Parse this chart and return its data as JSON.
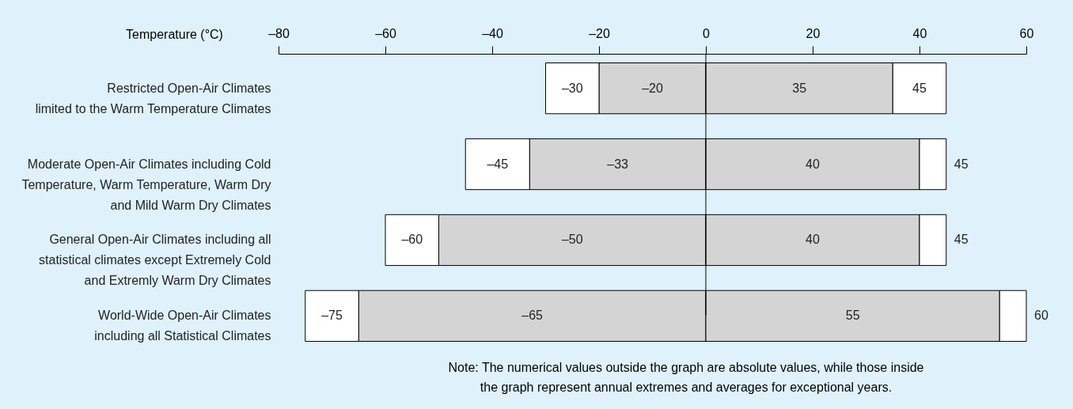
{
  "chart_data": {
    "type": "bar",
    "orientation": "horizontal",
    "stacked": true,
    "xlabel": "Temperature (°C)",
    "categories": [
      "Restricted Open-Air Climates\n limited to the Warm Temperature Climates",
      "Moderate Open-Air Climates including Cold\n Temperature, Warm Temperature, Warm Dry\n and Mild Warm Dry Climates",
      "General Open-Air Climates including all\n statistical climates except Extremely Cold\n and Extremly Warm Dry Climates",
      "World-Wide Open-Air Climates\n including all Statistical  Climates"
    ],
    "xlim": [
      -80,
      60
    ],
    "xticks": [
      {
        "value": -80,
        "label": "–80"
      },
      {
        "value": -60,
        "label": "–60"
      },
      {
        "value": -40,
        "label": "–40"
      },
      {
        "value": -20,
        "label": "–20"
      },
      0,
      20,
      40,
      60
    ],
    "grid": false,
    "legend": false,
    "series": [
      {
        "color": "#d4d4d4",
        "values": [
          -20,
          -33,
          -50,
          -65
        ],
        "value_labels": [
          "–20",
          "–33",
          "–50",
          "–65"
        ]
      },
      {
        "color": "#ffffff",
        "values": [
          -10,
          -12,
          -10,
          -10
        ]
      },
      {
        "color": "#d4d4d4",
        "values": [
          35,
          40,
          40,
          55
        ],
        "value_labels": [
          "35",
          "40",
          "40",
          "55"
        ]
      },
      {
        "color": "#ffffff",
        "values": [
          10,
          5,
          5,
          5
        ]
      }
    ],
    "ref_lines": [
      {
        "axis": "x",
        "value": 0
      }
    ],
    "annotations": [
      {
        "text": "–30",
        "x": -30,
        "y": "Restricted Open-Air Climates\n limited to the Warm Temperature Climates"
      },
      {
        "text": "–45",
        "x": -45,
        "y": "Moderate Open-Air Climates including Cold\n Temperature, Warm Temperature, Warm Dry\n and Mild Warm Dry Climates"
      },
      {
        "text": "–60",
        "x": -60,
        "y": "General Open-Air Climates including all\n statistical climates except Extremely Cold\n and Extremly Warm Dry Climates"
      },
      {
        "text": "–75",
        "x": -75,
        "y": "World-Wide Open-Air Climates\n including all Statistical  Climates"
      },
      {
        "text": "45",
        "x": 45,
        "y": "Restricted Open-Air Climates\n limited to the Warm Temperature Climates"
      },
      {
        "text": "45",
        "x": 45,
        "y": "Moderate Open-Air Climates including Cold\n Temperature, Warm Temperature, Warm Dry\n and Mild Warm Dry Climates"
      },
      {
        "text": "45",
        "x": 45,
        "y": "General Open-Air Climates including all\n statistical climates except Extremely Cold\n and Extremly Warm Dry Climates"
      },
      {
        "text": "60",
        "x": 60,
        "y": "World-Wide Open-Air Climates\n including all Statistical  Climates"
      },
      "Note: The numerical values outside the graph are absolute values, while those inside\n    the graph represent annual extremes and averages for exceptional years."
    ]
  }
}
